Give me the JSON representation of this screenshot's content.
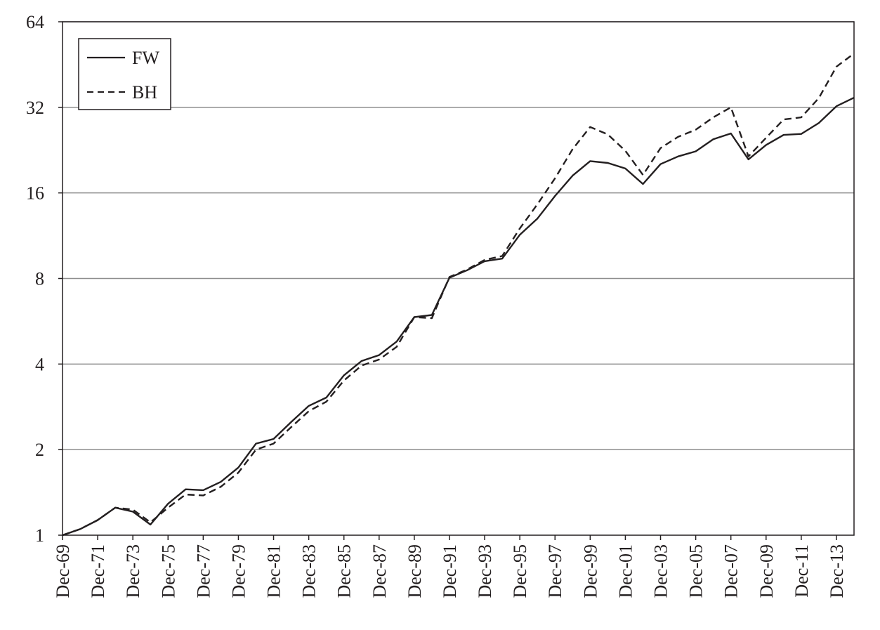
{
  "chart_data": {
    "type": "line",
    "title": "",
    "xlabel": "",
    "ylabel": "",
    "y_scale": "log2",
    "ylim": [
      1,
      64
    ],
    "y_ticks": [
      1,
      2,
      4,
      8,
      16,
      32,
      64
    ],
    "y_tick_labels": [
      "1",
      "2",
      "4",
      "8",
      "16",
      "32",
      "64"
    ],
    "grid": "horizontal",
    "legend_position": "top-left",
    "x": [
      "Dec-69",
      "Dec-70",
      "Dec-71",
      "Dec-72",
      "Dec-73",
      "Dec-74",
      "Dec-75",
      "Dec-76",
      "Dec-77",
      "Dec-78",
      "Dec-79",
      "Dec-80",
      "Dec-81",
      "Dec-82",
      "Dec-83",
      "Dec-84",
      "Dec-85",
      "Dec-86",
      "Dec-87",
      "Dec-88",
      "Dec-89",
      "Dec-90",
      "Dec-91",
      "Dec-92",
      "Dec-93",
      "Dec-94",
      "Dec-95",
      "Dec-96",
      "Dec-97",
      "Dec-98",
      "Dec-99",
      "Dec-00",
      "Dec-01",
      "Dec-02",
      "Dec-03",
      "Dec-04",
      "Dec-05",
      "Dec-06",
      "Dec-07",
      "Dec-08",
      "Dec-09",
      "Dec-10",
      "Dec-11",
      "Dec-12",
      "Dec-13",
      "Dec-14"
    ],
    "x_tick_labels": [
      "Dec-69",
      "Dec-71",
      "Dec-73",
      "Dec-75",
      "Dec-77",
      "Dec-79",
      "Dec-81",
      "Dec-83",
      "Dec-85",
      "Dec-87",
      "Dec-89",
      "Dec-91",
      "Dec-93",
      "Dec-95",
      "Dec-97",
      "Dec-99",
      "Dec-01",
      "Dec-03",
      "Dec-05",
      "Dec-07",
      "Dec-09",
      "Dec-11",
      "Dec-13"
    ],
    "series": [
      {
        "name": "FW",
        "style": "solid",
        "color": "#231f20",
        "values": [
          1.0,
          1.05,
          1.13,
          1.25,
          1.21,
          1.09,
          1.29,
          1.45,
          1.44,
          1.54,
          1.73,
          2.1,
          2.18,
          2.5,
          2.85,
          3.05,
          3.65,
          4.1,
          4.3,
          4.8,
          5.85,
          5.95,
          8.05,
          8.55,
          9.2,
          9.4,
          11.4,
          13.0,
          15.6,
          18.4,
          20.7,
          20.4,
          19.5,
          17.2,
          20.2,
          21.5,
          22.4,
          24.7,
          25.9,
          21.0,
          23.6,
          25.6,
          25.8,
          28.2,
          32.3,
          34.6
        ]
      },
      {
        "name": "BH",
        "style": "dashed",
        "color": "#231f20",
        "values": [
          1.0,
          1.05,
          1.13,
          1.25,
          1.23,
          1.11,
          1.25,
          1.39,
          1.38,
          1.48,
          1.66,
          2.0,
          2.1,
          2.4,
          2.73,
          2.95,
          3.5,
          3.95,
          4.15,
          4.6,
          5.85,
          5.8,
          8.1,
          8.6,
          9.3,
          9.6,
          12.0,
          14.6,
          18.0,
          22.8,
          27.3,
          25.7,
          22.5,
          18.5,
          23.0,
          25.2,
          26.7,
          29.5,
          32.0,
          21.5,
          25.0,
          29.0,
          29.5,
          34.5,
          44.5,
          49.5
        ]
      }
    ]
  }
}
